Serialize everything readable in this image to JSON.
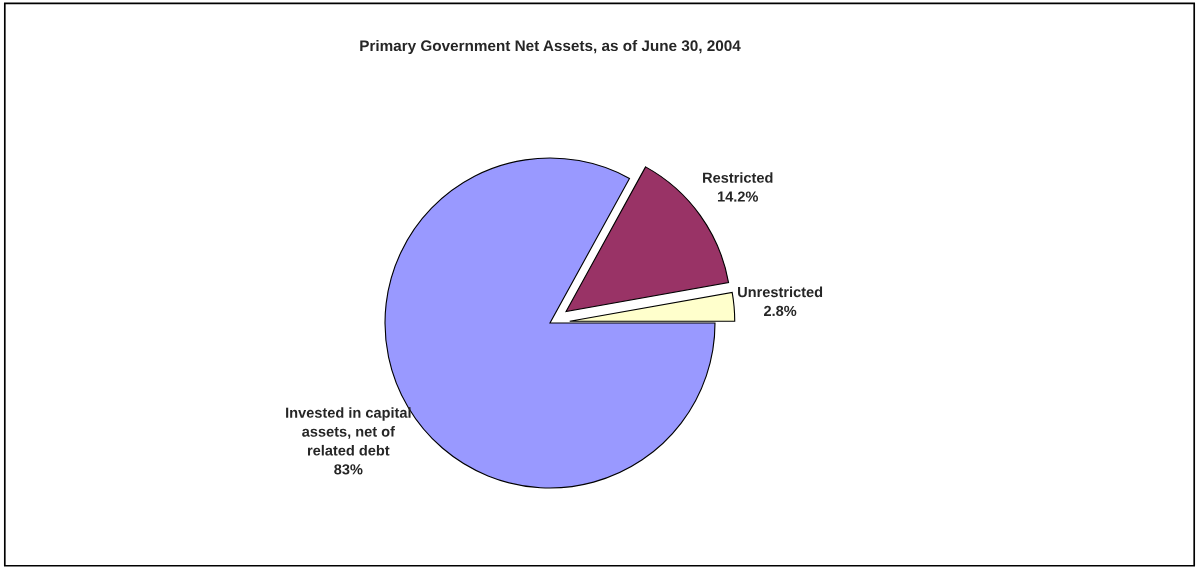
{
  "chart_data": {
    "type": "pie",
    "title": "Primary Government Net Assets, as of June 30, 2004",
    "categories": [
      "Unrestricted",
      "Restricted",
      "Invested in capital assets, net of related debt"
    ],
    "values": [
      2.8,
      14.2,
      83
    ],
    "value_labels": [
      "2.8%",
      "14.2%",
      "83%"
    ],
    "colors": [
      "#ffffcc",
      "#993366",
      "#9999ff"
    ]
  }
}
